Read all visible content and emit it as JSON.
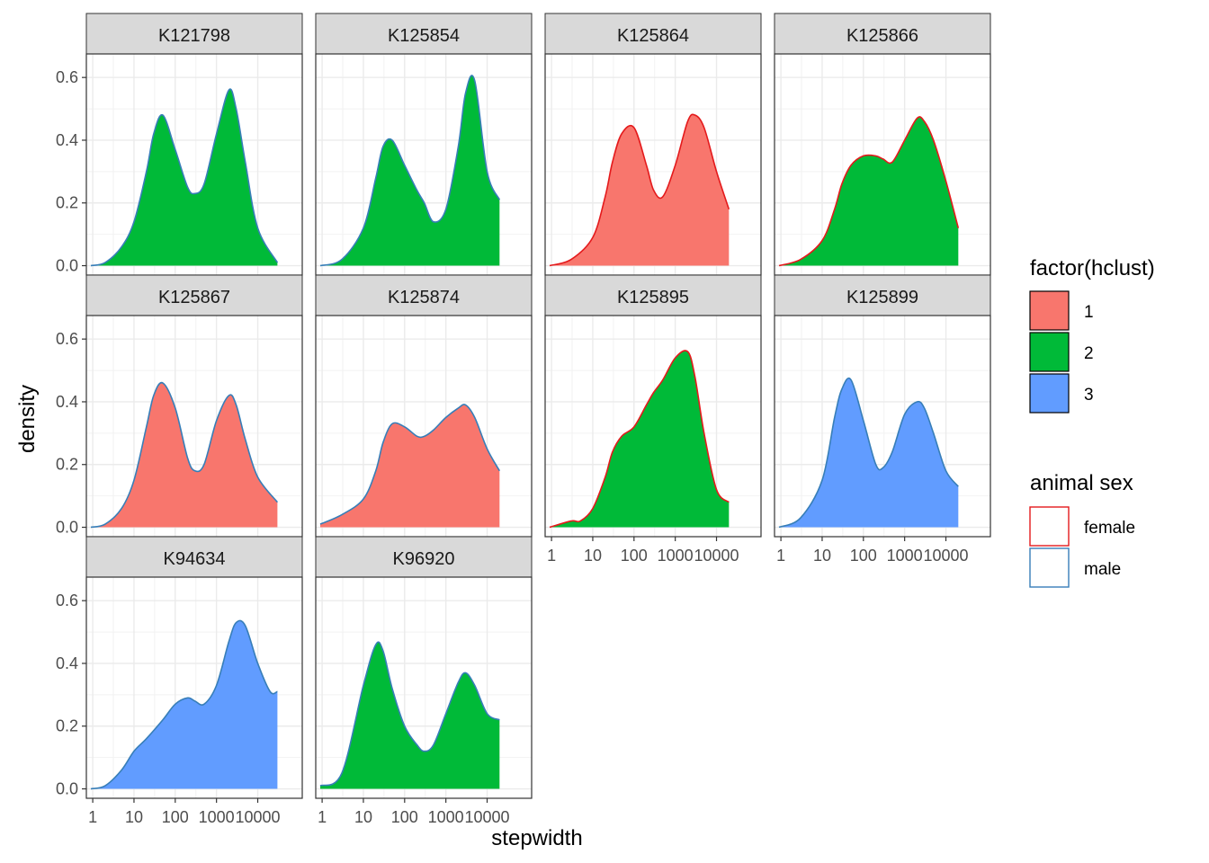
{
  "chart_data": {
    "type": "area",
    "subtype": "density-faceted",
    "xlabel": "stepwidth",
    "ylabel": "density",
    "x_scale": "log10",
    "xlim": [
      0.7,
      120000
    ],
    "ylim": [
      0,
      0.6
    ],
    "x_ticks": [
      1,
      10,
      100,
      1000,
      10000
    ],
    "x_tick_labels": [
      "1",
      "10",
      "100",
      "1000",
      "10000"
    ],
    "y_ticks": [
      0,
      0.2,
      0.4,
      0.6
    ],
    "y_tick_labels": [
      "0.0",
      "0.2",
      "0.4",
      "0.6"
    ],
    "grid": true,
    "legend_placement": "right",
    "fill_legend": {
      "title": "factor(hclust)",
      "items": [
        {
          "label": "1",
          "color": "#F8766D"
        },
        {
          "label": "2",
          "color": "#00BA38"
        },
        {
          "label": "3",
          "color": "#619CFF"
        }
      ]
    },
    "color_legend": {
      "title": "animal sex",
      "items": [
        {
          "label": "female",
          "color": "#E41A1C"
        },
        {
          "label": "male",
          "color": "#377EB8"
        }
      ]
    },
    "panels": [
      {
        "id": "K121798",
        "cluster": "2",
        "sex": "male",
        "x": [
          0.9,
          2,
          5,
          10,
          20,
          30,
          50,
          100,
          200,
          300,
          500,
          1000,
          2000,
          3000,
          5000,
          10000,
          30000
        ],
        "y": [
          0.0,
          0.01,
          0.06,
          0.14,
          0.3,
          0.42,
          0.48,
          0.37,
          0.25,
          0.23,
          0.26,
          0.42,
          0.56,
          0.5,
          0.33,
          0.12,
          0.01
        ]
      },
      {
        "id": "K125854",
        "cluster": "2",
        "sex": "male",
        "x": [
          0.9,
          3,
          10,
          20,
          30,
          50,
          100,
          200,
          300,
          500,
          1000,
          2000,
          3000,
          5000,
          10000,
          20000
        ],
        "y": [
          0.0,
          0.02,
          0.12,
          0.28,
          0.38,
          0.4,
          0.32,
          0.24,
          0.2,
          0.14,
          0.18,
          0.38,
          0.55,
          0.59,
          0.3,
          0.21
        ]
      },
      {
        "id": "K125864",
        "cluster": "1",
        "sex": "female",
        "x": [
          0.9,
          3,
          10,
          20,
          30,
          50,
          100,
          200,
          300,
          500,
          1000,
          2000,
          3000,
          5000,
          10000,
          20000
        ],
        "y": [
          0.0,
          0.02,
          0.09,
          0.22,
          0.33,
          0.42,
          0.44,
          0.32,
          0.24,
          0.22,
          0.32,
          0.46,
          0.48,
          0.44,
          0.3,
          0.18
        ]
      },
      {
        "id": "K125866",
        "cluster": "2",
        "sex": "female",
        "x": [
          0.9,
          3,
          10,
          20,
          30,
          50,
          100,
          200,
          300,
          500,
          1000,
          2000,
          3000,
          5000,
          10000,
          20000
        ],
        "y": [
          0.0,
          0.02,
          0.08,
          0.18,
          0.26,
          0.32,
          0.35,
          0.35,
          0.34,
          0.33,
          0.4,
          0.47,
          0.46,
          0.4,
          0.27,
          0.12
        ]
      },
      {
        "id": "K125867",
        "cluster": "1",
        "sex": "male",
        "x": [
          0.9,
          2,
          5,
          10,
          20,
          30,
          50,
          100,
          200,
          300,
          500,
          1000,
          2000,
          3000,
          5000,
          10000,
          30000
        ],
        "y": [
          0.0,
          0.01,
          0.06,
          0.15,
          0.32,
          0.42,
          0.46,
          0.38,
          0.22,
          0.18,
          0.2,
          0.34,
          0.42,
          0.39,
          0.28,
          0.16,
          0.08
        ]
      },
      {
        "id": "K125874",
        "cluster": "1",
        "sex": "male",
        "x": [
          0.9,
          3,
          10,
          20,
          30,
          50,
          100,
          200,
          300,
          500,
          1000,
          2000,
          3000,
          5000,
          10000,
          20000
        ],
        "y": [
          0.01,
          0.04,
          0.09,
          0.18,
          0.27,
          0.33,
          0.32,
          0.29,
          0.29,
          0.31,
          0.35,
          0.38,
          0.39,
          0.35,
          0.25,
          0.18
        ]
      },
      {
        "id": "K125895",
        "cluster": "2",
        "sex": "female",
        "x": [
          0.9,
          3,
          5,
          10,
          20,
          30,
          50,
          100,
          200,
          300,
          500,
          1000,
          2000,
          3000,
          5000,
          10000,
          20000
        ],
        "y": [
          0.0,
          0.02,
          0.02,
          0.06,
          0.16,
          0.24,
          0.29,
          0.32,
          0.39,
          0.43,
          0.47,
          0.54,
          0.56,
          0.48,
          0.3,
          0.12,
          0.08
        ]
      },
      {
        "id": "K125899",
        "cluster": "3",
        "sex": "male",
        "x": [
          0.9,
          3,
          10,
          20,
          30,
          50,
          100,
          200,
          300,
          500,
          1000,
          2000,
          3000,
          5000,
          10000,
          20000
        ],
        "y": [
          0.0,
          0.03,
          0.15,
          0.35,
          0.44,
          0.47,
          0.34,
          0.2,
          0.19,
          0.24,
          0.36,
          0.4,
          0.38,
          0.3,
          0.18,
          0.13
        ]
      },
      {
        "id": "K94634",
        "cluster": "3",
        "sex": "male",
        "x": [
          0.9,
          2,
          5,
          10,
          20,
          50,
          100,
          200,
          300,
          500,
          1000,
          2000,
          3000,
          5000,
          10000,
          20000,
          30000
        ],
        "y": [
          0.0,
          0.01,
          0.06,
          0.12,
          0.16,
          0.22,
          0.27,
          0.29,
          0.28,
          0.27,
          0.33,
          0.47,
          0.53,
          0.52,
          0.4,
          0.31,
          0.31
        ]
      },
      {
        "id": "K96920",
        "cluster": "2",
        "sex": "male",
        "x": [
          0.9,
          3,
          10,
          20,
          30,
          50,
          100,
          200,
          300,
          500,
          1000,
          2000,
          3000,
          5000,
          10000,
          20000
        ],
        "y": [
          0.01,
          0.05,
          0.33,
          0.46,
          0.44,
          0.32,
          0.2,
          0.14,
          0.12,
          0.14,
          0.24,
          0.34,
          0.37,
          0.33,
          0.24,
          0.22
        ]
      }
    ]
  }
}
